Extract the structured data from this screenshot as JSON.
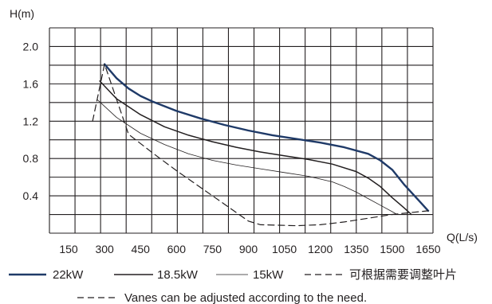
{
  "chart_data": {
    "type": "line",
    "ylabel": "H(m)",
    "xlabel": "Q(L/s)",
    "xlim": [
      70,
      1670
    ],
    "ylim": [
      0,
      2.2
    ],
    "grid": true,
    "x_ticks": [
      "150",
      "300",
      "450",
      "600",
      "750",
      "900",
      "1050",
      "1200",
      "1350",
      "1500",
      "1650"
    ],
    "y_ticks": [
      "2.0",
      "1.6",
      "1.2",
      "0.8",
      "0.4"
    ],
    "series": [
      {
        "name": "22kW",
        "style": "thick",
        "color": "#1f3a68",
        "x": [
          300,
          350,
          400,
          450,
          500,
          600,
          700,
          800,
          900,
          1000,
          1100,
          1200,
          1300,
          1400,
          1450,
          1500,
          1550,
          1600,
          1650
        ],
        "y": [
          1.81,
          1.66,
          1.55,
          1.47,
          1.41,
          1.31,
          1.23,
          1.16,
          1.1,
          1.05,
          1.01,
          0.97,
          0.92,
          0.85,
          0.78,
          0.68,
          0.52,
          0.38,
          0.24
        ]
      },
      {
        "name": "18.5kW",
        "style": "medium",
        "color": "#231f20",
        "x": [
          280,
          350,
          450,
          550,
          650,
          750,
          850,
          950,
          1050,
          1150,
          1250,
          1350,
          1400,
          1450,
          1500,
          1550,
          1580
        ],
        "y": [
          1.63,
          1.44,
          1.27,
          1.14,
          1.05,
          0.98,
          0.92,
          0.87,
          0.83,
          0.79,
          0.74,
          0.66,
          0.59,
          0.5,
          0.38,
          0.27,
          0.2
        ]
      },
      {
        "name": "15kW",
        "style": "thin",
        "color": "#231f20",
        "x": [
          270,
          350,
          450,
          550,
          650,
          750,
          850,
          950,
          1050,
          1150,
          1250,
          1300,
          1350,
          1400,
          1450,
          1500,
          1520
        ],
        "y": [
          1.43,
          1.24,
          1.07,
          0.95,
          0.85,
          0.78,
          0.73,
          0.69,
          0.65,
          0.61,
          0.55,
          0.5,
          0.44,
          0.37,
          0.3,
          0.23,
          0.2
        ]
      },
      {
        "name": "可根据需要调整叶片",
        "style": "dashed",
        "color": "#231f20",
        "x": [
          250,
          300,
          400,
          500,
          600,
          700,
          800,
          900,
          950,
          1100,
          1200,
          1300,
          1400,
          1500,
          1650
        ],
        "y": [
          1.2,
          1.81,
          1.06,
          0.86,
          0.67,
          0.49,
          0.31,
          0.13,
          0.09,
          0.08,
          0.09,
          0.12,
          0.16,
          0.2,
          0.24
        ]
      }
    ],
    "legend_position": "bottom",
    "note": "Vanes can be adjusted according to the need."
  }
}
